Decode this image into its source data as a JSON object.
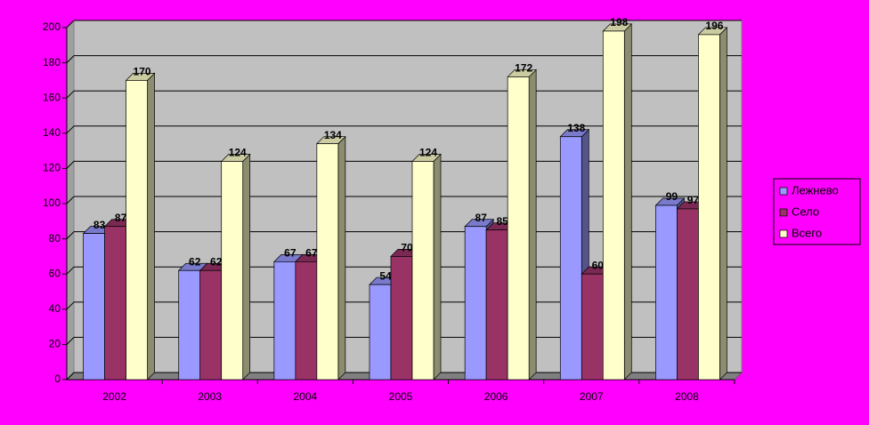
{
  "chart_data": {
    "type": "bar",
    "categories": [
      "2002",
      "2003",
      "2004",
      "2005",
      "2006",
      "2007",
      "2008"
    ],
    "series": [
      {
        "name": "Лежнево",
        "color": "#9999ff",
        "values": [
          83,
          62,
          67,
          54,
          87,
          138,
          99
        ]
      },
      {
        "name": "Село",
        "color": "#993366",
        "values": [
          87,
          62,
          67,
          70,
          85,
          60,
          97
        ]
      },
      {
        "name": "Всего",
        "color": "#ffffcc",
        "values": [
          170,
          124,
          134,
          124,
          172,
          198,
          196
        ]
      }
    ],
    "ylim": [
      0,
      200
    ],
    "yticks": [
      0,
      20,
      40,
      60,
      80,
      100,
      120,
      140,
      160,
      180,
      200
    ],
    "grid": true,
    "legend": "right",
    "data_labels": true
  }
}
